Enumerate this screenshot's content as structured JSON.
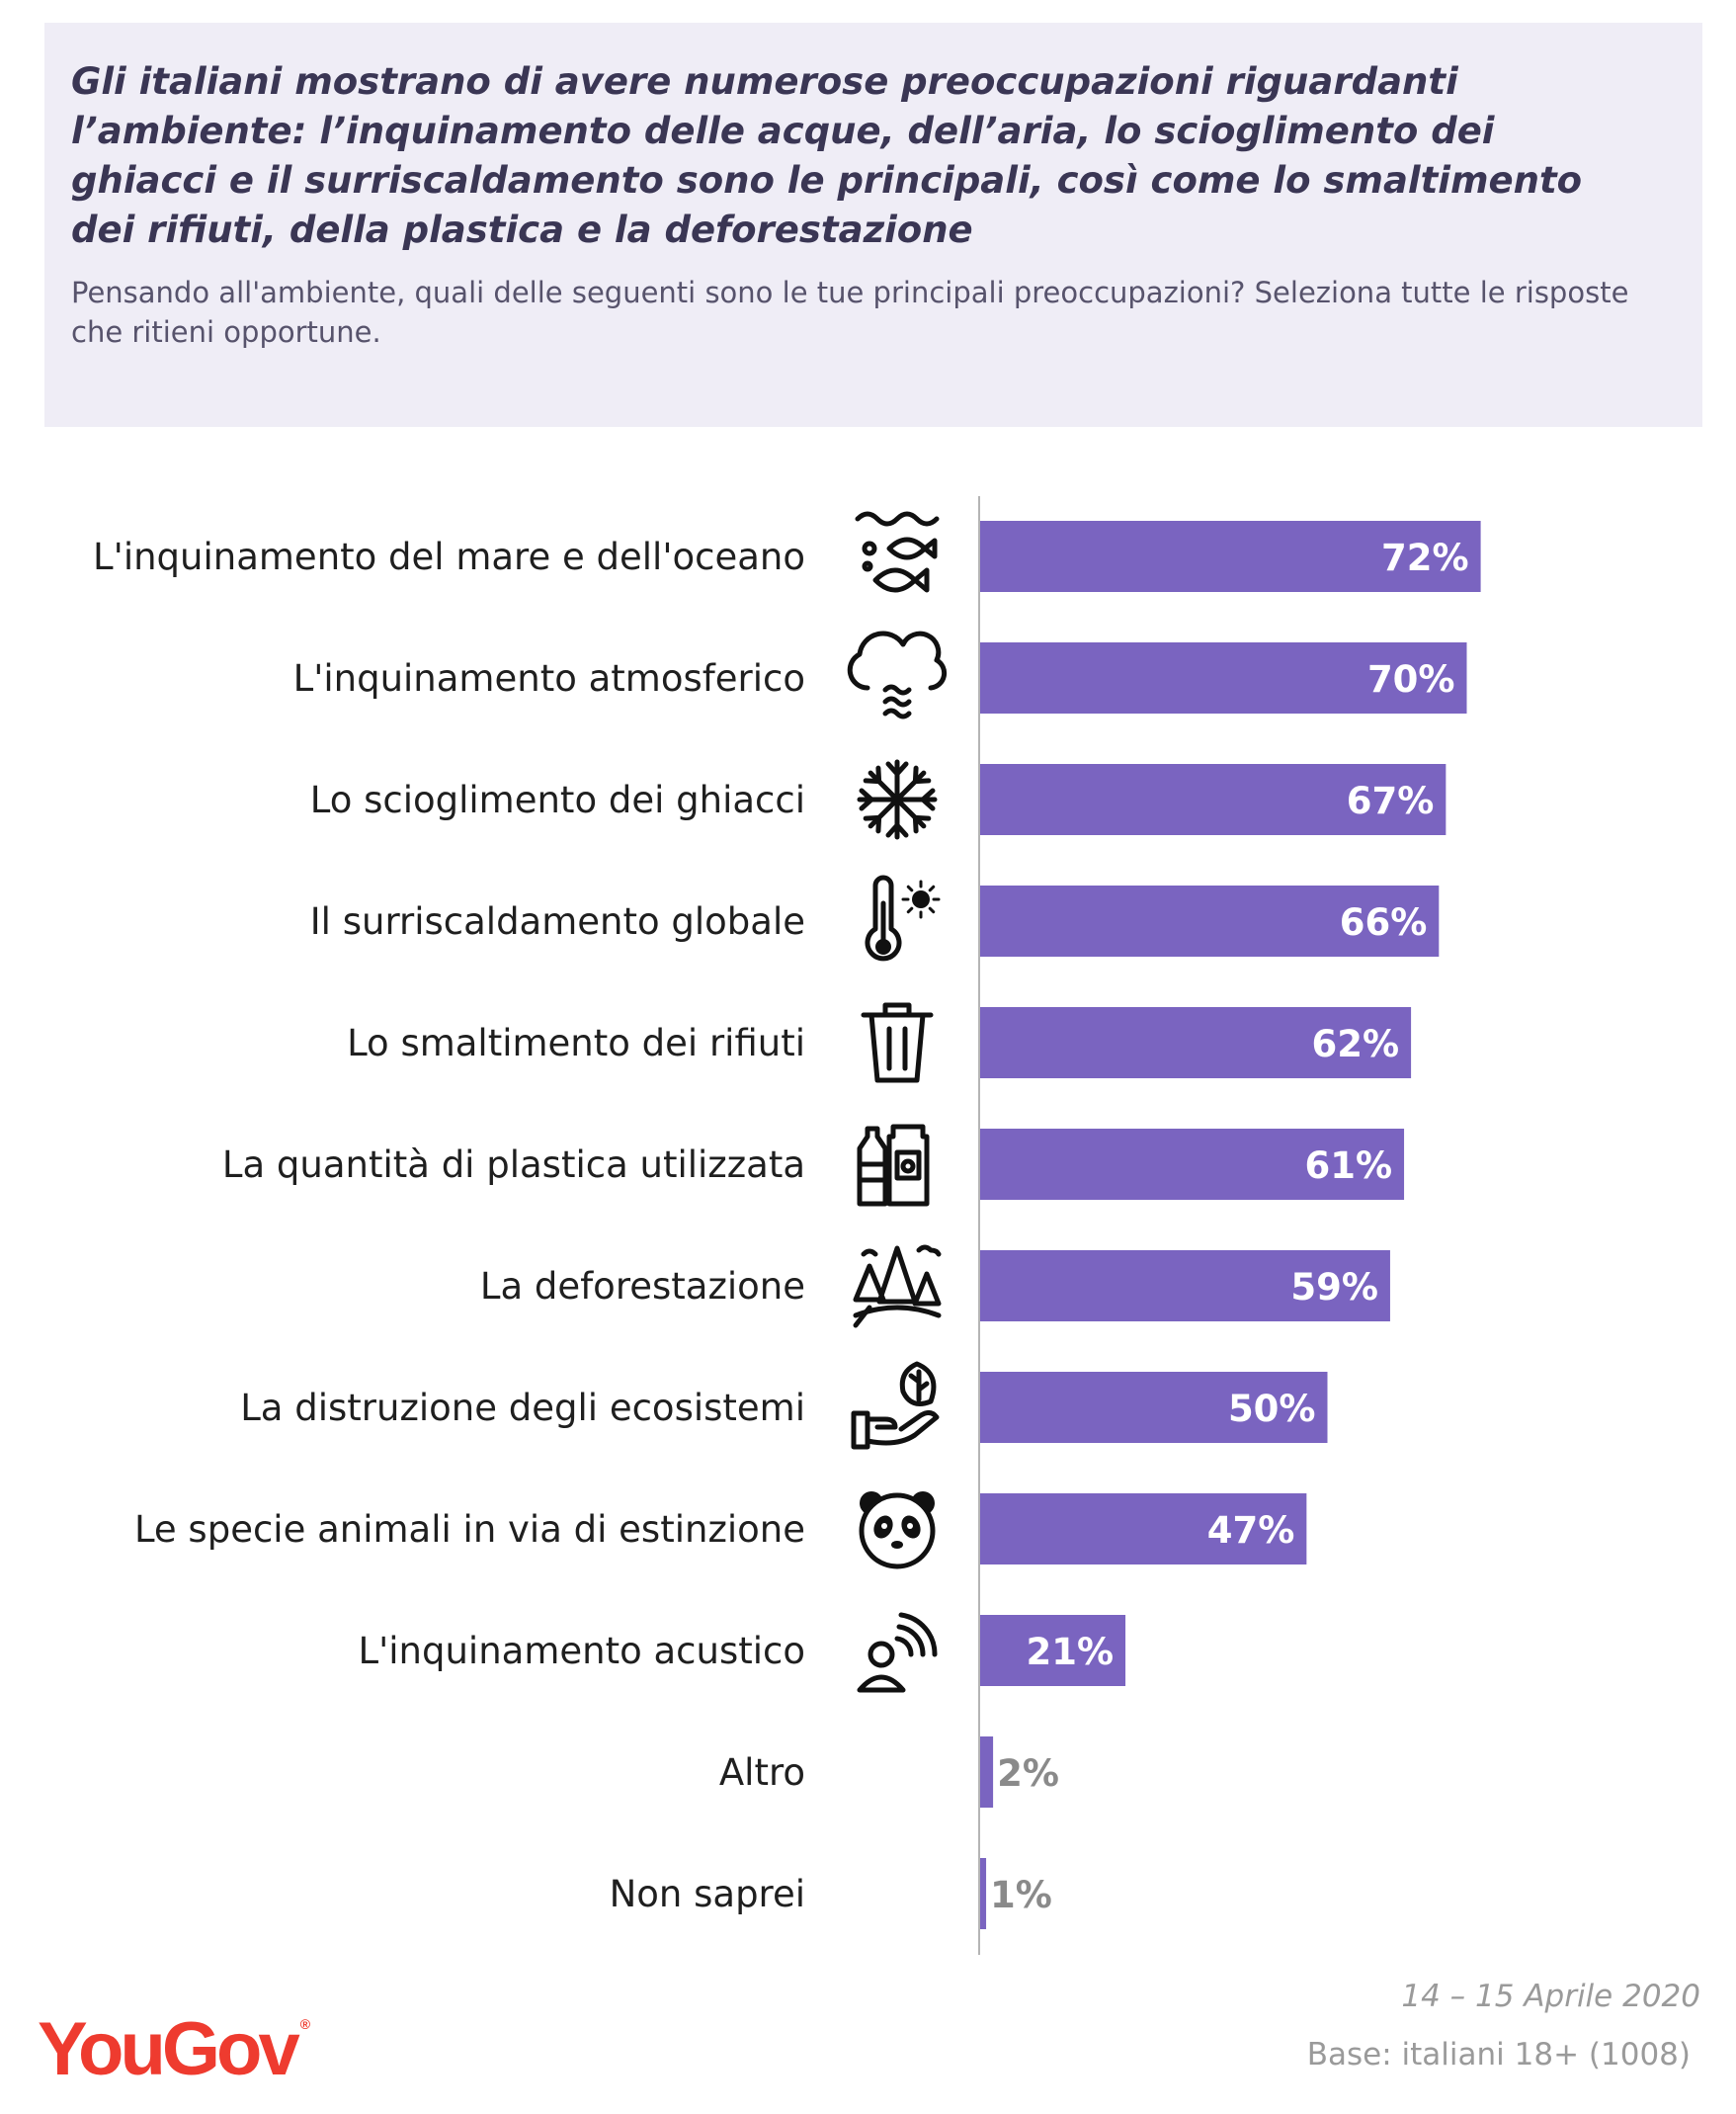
{
  "header": {
    "title": "Gli italiani mostrano di avere numerose preoccupazioni riguardanti l’ambiente: l’inquinamento delle acque, dell’aria, lo scioglimento dei ghiacci e il surriscaldamento sono le principali, così come lo smaltimento dei rifiuti, della plastica e la deforestazione",
    "subtitle": "Pensando all'ambiente, quali delle seguenti sono le tue principali preoccupazioni? Seleziona tutte le risposte che ritieni opportune."
  },
  "chart_data": {
    "type": "bar",
    "orientation": "horizontal",
    "categories": [
      "L'inquinamento del mare e dell'oceano",
      "L'inquinamento atmosferico",
      "Lo scioglimento dei ghiacci",
      "Il surriscaldamento globale",
      "Lo smaltimento dei rifiuti",
      "La quantità di plastica utilizzata",
      "La deforestazione",
      "La distruzione degli ecosistemi",
      "Le specie animali in via di estinzione",
      "L'inquinamento acustico",
      "Altro",
      "Non saprei"
    ],
    "values": [
      72,
      70,
      67,
      66,
      62,
      61,
      59,
      50,
      47,
      21,
      2,
      1
    ],
    "value_labels": [
      "72%",
      "70%",
      "67%",
      "66%",
      "62%",
      "61%",
      "59%",
      "50%",
      "47%",
      "21%",
      "2%",
      "1%"
    ],
    "icons": [
      "fish-water-icon",
      "smog-cloud-icon",
      "snowflake-icon",
      "thermometer-sun-icon",
      "trash-bin-icon",
      "plastic-bottles-icon",
      "forest-icon",
      "hand-leaf-icon",
      "panda-icon",
      "noise-person-icon",
      "",
      ""
    ],
    "xlim": [
      0,
      100
    ],
    "bar_color": "#7a64c0",
    "value_label_inside_color": "#ffffff",
    "value_label_outside_color": "#8a8a8a"
  },
  "footer": {
    "date": "14 – 15 Aprile 2020",
    "base": "Base: italiani 18+ (1008)",
    "brand": "YouGov"
  }
}
